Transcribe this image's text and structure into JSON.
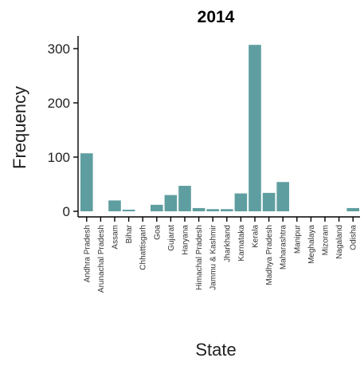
{
  "chart_data": {
    "type": "bar",
    "title": "2014",
    "xlabel": "State",
    "ylabel": "Frequency",
    "ylim": [
      0,
      320
    ],
    "yticks": [
      0,
      100,
      200,
      300
    ],
    "categories": [
      "Andhra Pradesh",
      "Arunachal Pradesh",
      "Assam",
      "Bihar",
      "Chhattisgarh",
      "Goa",
      "Gujarat",
      "Haryana",
      "Himachal Pradesh",
      "Jammu & Kashmir",
      "Jharkhand",
      "Karnataka",
      "Kerala",
      "Madhya Pradesh",
      "Maharashtra",
      "Manipur",
      "Meghalaya",
      "Mizoram",
      "Nagaland",
      "Odisha"
    ],
    "values": [
      107,
      0,
      20,
      3,
      0,
      12,
      30,
      47,
      6,
      4,
      4,
      33,
      307,
      34,
      54,
      0,
      0,
      0,
      0,
      6
    ],
    "colors": {
      "bar": "#5f9ea0",
      "axis": "#000000"
    },
    "grid": false,
    "legend": "none"
  }
}
